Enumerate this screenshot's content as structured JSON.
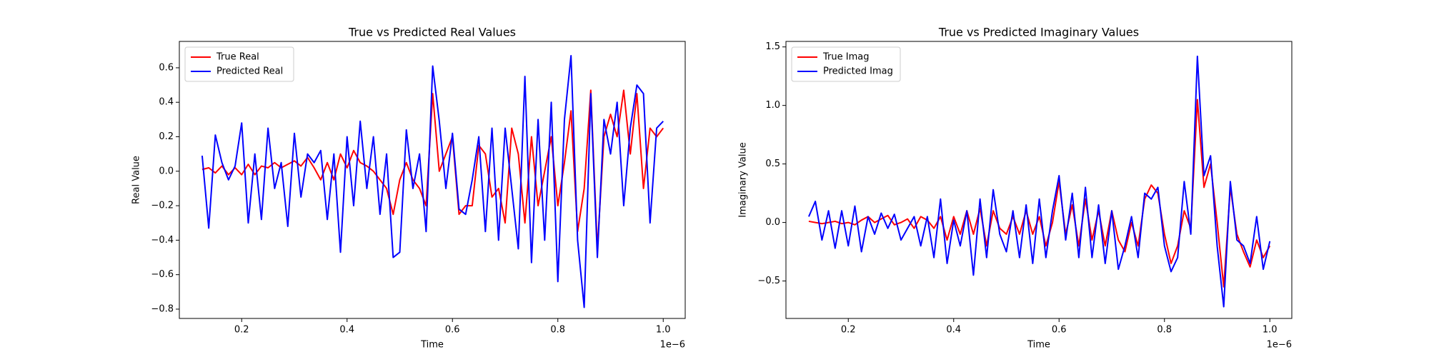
{
  "chart_data": [
    {
      "type": "line",
      "title": "True vs Predicted Real Values",
      "xlabel": "Time",
      "ylabel": "Real Value",
      "x_offset_label": "1e−6",
      "x": [
        0.125,
        0.1375,
        0.15,
        0.1625,
        0.175,
        0.1875,
        0.2,
        0.2125,
        0.225,
        0.2375,
        0.25,
        0.2625,
        0.275,
        0.2875,
        0.3,
        0.3125,
        0.325,
        0.3375,
        0.35,
        0.3625,
        0.375,
        0.3875,
        0.4,
        0.4125,
        0.425,
        0.4375,
        0.45,
        0.4625,
        0.475,
        0.4875,
        0.5,
        0.5125,
        0.525,
        0.5375,
        0.55,
        0.5625,
        0.575,
        0.5875,
        0.6,
        0.6125,
        0.625,
        0.6375,
        0.65,
        0.6625,
        0.675,
        0.6875,
        0.7,
        0.7125,
        0.725,
        0.7375,
        0.75,
        0.7625,
        0.775,
        0.7875,
        0.8,
        0.8125,
        0.825,
        0.8375,
        0.85,
        0.8625,
        0.875,
        0.8875,
        0.9,
        0.9125,
        0.925,
        0.9375,
        0.95,
        0.9625,
        0.975,
        0.9875,
        1.0
      ],
      "series": [
        {
          "name": "True Real",
          "color": "#ff0000",
          "values": [
            0.01,
            0.02,
            -0.01,
            0.03,
            -0.02,
            0.02,
            -0.02,
            0.04,
            -0.02,
            0.03,
            0.02,
            0.05,
            0.02,
            0.04,
            0.06,
            0.03,
            0.08,
            0.02,
            -0.05,
            0.05,
            -0.05,
            0.1,
            0.02,
            0.12,
            0.05,
            0.03,
            0,
            -0.05,
            -0.1,
            -0.25,
            -0.05,
            0.05,
            -0.05,
            -0.1,
            -0.2,
            0.45,
            0,
            0.1,
            0.2,
            -0.25,
            -0.2,
            -0.2,
            0.15,
            0.1,
            -0.15,
            -0.1,
            -0.3,
            0.25,
            0.1,
            -0.3,
            0.2,
            -0.2,
            0,
            0.2,
            -0.2,
            0.05,
            0.35,
            -0.35,
            -0.1,
            0.47,
            -0.45,
            0.2,
            0.33,
            0.2,
            0.47,
            0.1,
            0.45,
            -0.1,
            0.25,
            0.2,
            0.25
          ]
        },
        {
          "name": "Predicted Real",
          "color": "#0000ff",
          "values": [
            0.09,
            -0.33,
            0.21,
            0.05,
            -0.05,
            0.03,
            0.28,
            -0.3,
            0.1,
            -0.28,
            0.25,
            -0.1,
            0.05,
            -0.32,
            0.22,
            -0.15,
            0.1,
            0.05,
            0.12,
            -0.28,
            0.1,
            -0.47,
            0.2,
            -0.2,
            0.29,
            -0.1,
            0.2,
            -0.25,
            0.1,
            -0.5,
            -0.47,
            0.24,
            -0.1,
            0.1,
            -0.35,
            0.61,
            0.29,
            -0.1,
            0.22,
            -0.22,
            -0.25,
            -0.05,
            0.2,
            -0.35,
            0.25,
            -0.4,
            0.25,
            -0.1,
            -0.45,
            0.55,
            -0.53,
            0.3,
            -0.4,
            0.4,
            -0.64,
            0.3,
            0.67,
            -0.4,
            -0.79,
            0.45,
            -0.5,
            0.3,
            0.1,
            0.4,
            -0.2,
            0.25,
            0.5,
            0.45,
            -0.3,
            0.25,
            0.29
          ]
        }
      ],
      "xlim": [
        0.0817,
        1.0417
      ],
      "ylim": [
        -0.854,
        0.753
      ],
      "xticks": [
        0.2,
        0.4,
        0.6,
        0.8,
        {
          "value": 1,
          "label": "1.0"
        }
      ],
      "yticks": [
        0.6,
        0.4,
        0.2,
        {
          "value": 0,
          "label": "0.0"
        },
        {
          "value": -0.2,
          "label": "−0.2"
        },
        {
          "value": -0.4,
          "label": "−0.4"
        },
        {
          "value": -0.6,
          "label": "−0.6"
        },
        {
          "value": -0.8,
          "label": "−0.8"
        }
      ],
      "legend": "upper left"
    },
    {
      "type": "line",
      "title": "True vs Predicted Imaginary Values",
      "xlabel": "Time",
      "ylabel": "Imaginary Value",
      "x_offset_label": "1e−6",
      "x": [
        0.125,
        0.1375,
        0.15,
        0.1625,
        0.175,
        0.1875,
        0.2,
        0.2125,
        0.225,
        0.2375,
        0.25,
        0.2625,
        0.275,
        0.2875,
        0.3,
        0.3125,
        0.325,
        0.3375,
        0.35,
        0.3625,
        0.375,
        0.3875,
        0.4,
        0.4125,
        0.425,
        0.4375,
        0.45,
        0.4625,
        0.475,
        0.4875,
        0.5,
        0.5125,
        0.525,
        0.5375,
        0.55,
        0.5625,
        0.575,
        0.5875,
        0.6,
        0.6125,
        0.625,
        0.6375,
        0.65,
        0.6625,
        0.675,
        0.6875,
        0.7,
        0.7125,
        0.725,
        0.7375,
        0.75,
        0.7625,
        0.775,
        0.7875,
        0.8,
        0.8125,
        0.825,
        0.8375,
        0.85,
        0.8625,
        0.875,
        0.8875,
        0.9,
        0.9125,
        0.925,
        0.9375,
        0.95,
        0.9625,
        0.975,
        0.9875,
        1.0
      ],
      "series": [
        {
          "name": "True Imag",
          "color": "#ff0000",
          "values": [
            0.01,
            0,
            -0.01,
            0,
            0.01,
            -0.01,
            0,
            -0.02,
            0.02,
            0.05,
            0,
            0.03,
            0.06,
            -0.02,
            0,
            0.03,
            -0.05,
            0.05,
            0.02,
            -0.05,
            0.05,
            -0.15,
            0.05,
            -0.1,
            0.1,
            -0.1,
            0.12,
            -0.2,
            0.1,
            -0.05,
            -0.1,
            0.05,
            -0.1,
            0.1,
            -0.1,
            0.05,
            -0.2,
            0,
            0.35,
            -0.1,
            0.15,
            -0.2,
            0.2,
            -0.15,
            0.1,
            -0.2,
            0.1,
            -0.15,
            -0.25,
            0,
            -0.2,
            0.2,
            0.32,
            0.25,
            -0.1,
            -0.35,
            -0.2,
            0.1,
            -0.05,
            1.05,
            0.3,
            0.5,
            0,
            -0.55,
            0.3,
            -0.1,
            -0.25,
            -0.38,
            -0.15,
            -0.3,
            -0.2
          ]
        },
        {
          "name": "Predicted Imag",
          "color": "#0000ff",
          "values": [
            0.05,
            0.18,
            -0.15,
            0.1,
            -0.22,
            0.1,
            -0.2,
            0.14,
            -0.25,
            0.05,
            -0.1,
            0.08,
            -0.05,
            0.07,
            -0.15,
            -0.05,
            0.05,
            -0.2,
            0.05,
            -0.3,
            0.2,
            -0.35,
            0.02,
            -0.2,
            0.1,
            -0.45,
            0.2,
            -0.3,
            0.28,
            -0.1,
            -0.25,
            0.1,
            -0.3,
            0.15,
            -0.35,
            0.2,
            -0.3,
            0.1,
            0.4,
            -0.15,
            0.25,
            -0.3,
            0.3,
            -0.3,
            0.15,
            -0.35,
            0.1,
            -0.4,
            -0.2,
            0.05,
            -0.3,
            0.25,
            0.2,
            0.3,
            -0.2,
            -0.42,
            -0.3,
            0.35,
            -0.1,
            1.42,
            0.4,
            0.57,
            -0.2,
            -0.72,
            0.35,
            -0.15,
            -0.2,
            -0.35,
            0.05,
            -0.4,
            -0.16
          ]
        }
      ],
      "xlim": [
        0.0817,
        1.0417
      ],
      "ylim": [
        -0.82,
        1.547
      ],
      "xticks": [
        0.2,
        0.4,
        0.6,
        0.8,
        {
          "value": 1,
          "label": "1.0"
        }
      ],
      "yticks": [
        1.5,
        {
          "value": 1,
          "label": "1.0"
        },
        0.5,
        {
          "value": 0,
          "label": "0.0"
        },
        {
          "value": -0.5,
          "label": "−0.5"
        }
      ],
      "legend": "upper left"
    }
  ]
}
